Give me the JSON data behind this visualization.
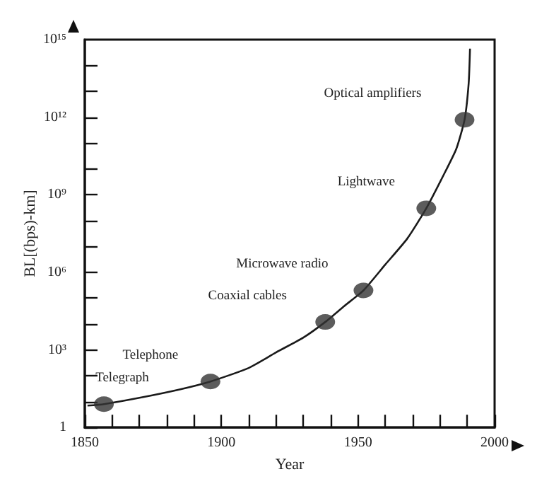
{
  "chart_data": {
    "type": "line",
    "xlabel": "Year",
    "ylabel": "BL[(bps)-km]",
    "log": "y",
    "grid": false,
    "xlim": [
      1850,
      2000
    ],
    "xticks": [
      1850,
      {
        "value": 1860,
        "label": null
      },
      {
        "value": 1870,
        "label": null
      },
      {
        "value": 1880,
        "label": null
      },
      {
        "value": 1890,
        "label": null
      },
      1900,
      {
        "value": 1910,
        "label": null
      },
      {
        "value": 1920,
        "label": null
      },
      {
        "value": 1930,
        "label": null
      },
      {
        "value": 1940,
        "label": null
      },
      1950,
      {
        "value": 1960,
        "label": null
      },
      {
        "value": 1970,
        "label": null
      },
      {
        "value": 1980,
        "label": null
      },
      {
        "value": 1990,
        "label": null
      },
      2000
    ],
    "ylim": [
      1,
      1000000000000000
    ],
    "yticks": [
      {
        "value": 1,
        "label": "1"
      },
      {
        "value": 10,
        "label": null
      },
      {
        "value": 100,
        "label": null
      },
      {
        "value": 1000,
        "label": "10³"
      },
      {
        "value": 10000,
        "label": null
      },
      {
        "value": 100000,
        "label": null
      },
      {
        "value": 1000000,
        "label": "10⁶"
      },
      {
        "value": 10000000,
        "label": null
      },
      {
        "value": 100000000,
        "label": null
      },
      {
        "value": 1000000000,
        "label": "10⁹"
      },
      {
        "value": 10000000000,
        "label": null
      },
      {
        "value": 100000000000,
        "label": null
      },
      {
        "value": 1000000000000,
        "label": "10¹²"
      },
      {
        "value": 10000000000000,
        "label": null
      },
      {
        "value": 100000000000000,
        "label": null
      },
      {
        "value": 1000000000000000,
        "label": "10¹⁵"
      }
    ],
    "series": [
      {
        "marker": "none",
        "color": "#1a1a1a",
        "x": [
          1851,
          1857,
          1870,
          1885,
          1896,
          1910,
          1920,
          1930,
          1938,
          1945,
          1952,
          1960,
          1968,
          1975,
          1982,
          1986,
          1989,
          1990.5,
          1991
        ],
        "values": [
          7,
          8,
          14,
          30,
          60,
          200,
          800,
          3000,
          12000,
          50000,
          200000,
          2000000,
          20000000,
          300000000,
          8000000000,
          60000000000,
          800000000000,
          20000000000000,
          450000000000000
        ]
      },
      {
        "type": "scatter",
        "marker": "circle",
        "color": "#333333",
        "x": [
          1857,
          1896,
          1938,
          1952,
          1975,
          1989
        ],
        "values": [
          8,
          60,
          12000,
          200000,
          300000000,
          800000000000
        ]
      }
    ],
    "annotations": [
      "Telegraph",
      "Telephone",
      "Coaxial cables",
      "Microwave radio",
      "Lightwave",
      "Optical amplifiers"
    ]
  }
}
